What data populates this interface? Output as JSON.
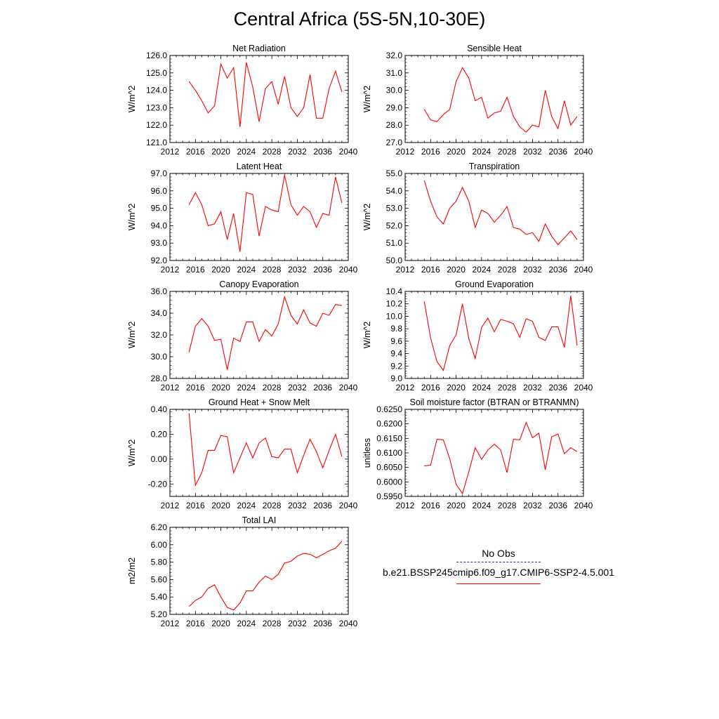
{
  "figure": {
    "title": "Central Africa (5S-5N,10-30E)"
  },
  "legend": {
    "entries": [
      {
        "label": "No Obs",
        "color": "#2b2b8a",
        "style": "dashed"
      },
      {
        "label": "b.e21.BSSP245cmip6.f09_g17.CMIP6-SSP2-4.5.001",
        "color": "#ff0000",
        "style": "solid"
      }
    ]
  },
  "chart_data": [
    {
      "type": "line",
      "title": "Net Radiation",
      "xlabel": "",
      "ylabel": "W/m^2",
      "xlim": [
        2012,
        2040
      ],
      "xticks": [
        "2012",
        "2016",
        "2020",
        "2024",
        "2028",
        "2032",
        "2036",
        "2040"
      ],
      "ylim": [
        121.0,
        126.0
      ],
      "yticks": [
        "121.0",
        "122.0",
        "123.0",
        "124.0",
        "125.0",
        "126.0"
      ],
      "x": [
        2015,
        2016,
        2017,
        2018,
        2019,
        2020,
        2021,
        2022,
        2023,
        2024,
        2025,
        2026,
        2027,
        2028,
        2029,
        2030,
        2031,
        2032,
        2033,
        2034,
        2035,
        2036,
        2037,
        2038,
        2039
      ],
      "series": [
        {
          "color": "#ff0000",
          "values": [
            124.5,
            124.0,
            123.4,
            122.7,
            123.1,
            125.5,
            124.7,
            125.3,
            121.9,
            125.6,
            124.2,
            122.2,
            124.1,
            124.5,
            123.2,
            124.8,
            123.0,
            122.5,
            123.0,
            124.9,
            122.4,
            122.4,
            124.1,
            125.1,
            123.9
          ]
        }
      ]
    },
    {
      "type": "line",
      "title": "Sensible Heat",
      "xlabel": "",
      "ylabel": "W/m^2",
      "xlim": [
        2012,
        2040
      ],
      "xticks": [
        "2012",
        "2016",
        "2020",
        "2024",
        "2028",
        "2032",
        "2036",
        "2040"
      ],
      "ylim": [
        27.0,
        32.0
      ],
      "yticks": [
        "27.0",
        "28.0",
        "29.0",
        "30.0",
        "31.0",
        "32.0"
      ],
      "x": [
        2015,
        2016,
        2017,
        2018,
        2019,
        2020,
        2021,
        2022,
        2023,
        2024,
        2025,
        2026,
        2027,
        2028,
        2029,
        2030,
        2031,
        2032,
        2033,
        2034,
        2035,
        2036,
        2037,
        2038,
        2039
      ],
      "series": [
        {
          "color": "#ff0000",
          "values": [
            28.9,
            28.3,
            28.2,
            28.6,
            28.9,
            30.5,
            31.3,
            30.7,
            29.4,
            29.6,
            28.4,
            28.7,
            28.8,
            29.6,
            28.5,
            27.9,
            27.6,
            28.0,
            27.9,
            30.0,
            28.5,
            27.8,
            29.4,
            28.0,
            28.5
          ]
        }
      ]
    },
    {
      "type": "line",
      "title": "Latent Heat",
      "xlabel": "",
      "ylabel": "W/m^2",
      "xlim": [
        2012,
        2040
      ],
      "xticks": [
        "2012",
        "2016",
        "2020",
        "2024",
        "2028",
        "2032",
        "2036",
        "2040"
      ],
      "ylim": [
        92.0,
        97.0
      ],
      "yticks": [
        "92.0",
        "93.0",
        "94.0",
        "95.0",
        "96.0",
        "97.0"
      ],
      "x": [
        2015,
        2016,
        2017,
        2018,
        2019,
        2020,
        2021,
        2022,
        2023,
        2024,
        2025,
        2026,
        2027,
        2028,
        2029,
        2030,
        2031,
        2032,
        2033,
        2034,
        2035,
        2036,
        2037,
        2038,
        2039
      ],
      "series": [
        {
          "color": "#ff0000",
          "values": [
            95.2,
            95.9,
            95.2,
            94.0,
            94.1,
            94.8,
            93.2,
            94.7,
            92.5,
            95.9,
            95.8,
            93.4,
            95.1,
            94.9,
            94.8,
            96.9,
            95.2,
            94.6,
            95.1,
            94.8,
            93.9,
            94.7,
            94.6,
            96.8,
            95.3
          ]
        }
      ]
    },
    {
      "type": "line",
      "title": "Transpiration",
      "xlabel": "",
      "ylabel": "W/m^2",
      "xlim": [
        2012,
        2040
      ],
      "xticks": [
        "2012",
        "2016",
        "2020",
        "2024",
        "2028",
        "2032",
        "2036",
        "2040"
      ],
      "ylim": [
        50.0,
        55.0
      ],
      "yticks": [
        "50.0",
        "51.0",
        "52.0",
        "53.0",
        "54.0",
        "55.0"
      ],
      "x": [
        2015,
        2016,
        2017,
        2018,
        2019,
        2020,
        2021,
        2022,
        2023,
        2024,
        2025,
        2026,
        2027,
        2028,
        2029,
        2030,
        2031,
        2032,
        2033,
        2034,
        2035,
        2036,
        2037,
        2038,
        2039
      ],
      "series": [
        {
          "color": "#ff0000",
          "values": [
            54.6,
            53.4,
            52.5,
            52.1,
            53.0,
            53.4,
            54.2,
            53.4,
            51.9,
            52.9,
            52.7,
            52.2,
            52.6,
            53.1,
            51.9,
            51.8,
            51.5,
            51.6,
            51.1,
            52.1,
            51.4,
            50.9,
            51.3,
            51.7,
            51.2
          ]
        }
      ]
    },
    {
      "type": "line",
      "title": "Canopy Evaporation",
      "xlabel": "",
      "ylabel": "W/m^2",
      "xlim": [
        2012,
        2040
      ],
      "xticks": [
        "2012",
        "2016",
        "2020",
        "2024",
        "2028",
        "2032",
        "2036",
        "2040"
      ],
      "ylim": [
        28.0,
        36.0
      ],
      "yticks": [
        "28.0",
        "30.0",
        "32.0",
        "34.0",
        "36.0"
      ],
      "x": [
        2015,
        2016,
        2017,
        2018,
        2019,
        2020,
        2021,
        2022,
        2023,
        2024,
        2025,
        2026,
        2027,
        2028,
        2029,
        2030,
        2031,
        2032,
        2033,
        2034,
        2035,
        2036,
        2037,
        2038,
        2039
      ],
      "series": [
        {
          "color": "#ff0000",
          "values": [
            30.4,
            32.8,
            33.5,
            32.8,
            31.5,
            31.6,
            28.8,
            31.7,
            31.4,
            33.2,
            33.2,
            31.4,
            32.5,
            31.9,
            33.0,
            35.5,
            33.8,
            33.0,
            34.3,
            33.1,
            32.8,
            34.0,
            33.8,
            34.8,
            34.7
          ]
        }
      ]
    },
    {
      "type": "line",
      "title": "Ground Evaporation",
      "xlabel": "",
      "ylabel": "W/m^2",
      "xlim": [
        2012,
        2040
      ],
      "xticks": [
        "2012",
        "2016",
        "2020",
        "2024",
        "2028",
        "2032",
        "2036",
        "2040"
      ],
      "ylim": [
        9.0,
        10.4
      ],
      "yticks": [
        "9.0",
        "9.2",
        "9.4",
        "9.6",
        "9.8",
        "10.0",
        "10.2",
        "10.4"
      ],
      "x": [
        2015,
        2016,
        2017,
        2018,
        2019,
        2020,
        2021,
        2022,
        2023,
        2024,
        2025,
        2026,
        2027,
        2028,
        2029,
        2030,
        2031,
        2032,
        2033,
        2034,
        2035,
        2036,
        2037,
        2038,
        2039
      ],
      "series": [
        {
          "color": "#ff0000",
          "values": [
            10.24,
            9.65,
            9.27,
            9.13,
            9.53,
            9.7,
            10.2,
            9.64,
            9.32,
            9.82,
            9.97,
            9.75,
            9.95,
            9.92,
            9.88,
            9.66,
            9.96,
            9.92,
            9.66,
            9.61,
            9.83,
            9.83,
            9.5,
            10.33,
            9.53
          ]
        }
      ]
    },
    {
      "type": "line",
      "title": "Ground Heat + Snow Melt",
      "xlabel": "",
      "ylabel": "W/m^2",
      "xlim": [
        2012,
        2040
      ],
      "xticks": [
        "2012",
        "2016",
        "2020",
        "2024",
        "2028",
        "2032",
        "2036",
        "2040"
      ],
      "ylim": [
        -0.3,
        0.4
      ],
      "yticks": [
        "-0.20",
        "0.00",
        "0.20",
        "0.40"
      ],
      "ytickvals": [
        -0.2,
        0.0,
        0.2,
        0.4
      ],
      "x": [
        2015,
        2016,
        2017,
        2018,
        2019,
        2020,
        2021,
        2022,
        2023,
        2024,
        2025,
        2026,
        2027,
        2028,
        2029,
        2030,
        2031,
        2032,
        2033,
        2034,
        2035,
        2036,
        2037,
        2038,
        2039
      ],
      "series": [
        {
          "color": "#ff0000",
          "values": [
            0.37,
            -0.21,
            -0.11,
            0.07,
            0.07,
            0.19,
            0.18,
            -0.11,
            0.01,
            0.13,
            0.01,
            0.13,
            0.17,
            0.02,
            0.01,
            0.08,
            0.08,
            -0.11,
            0.03,
            0.16,
            0.06,
            -0.07,
            0.07,
            0.2,
            0.02
          ]
        }
      ]
    },
    {
      "type": "line",
      "title": "Soil moisture factor (BTRAN or BTRANMN)",
      "xlabel": "",
      "ylabel": "unitless",
      "xlim": [
        2012,
        2040
      ],
      "xticks": [
        "2012",
        "2016",
        "2020",
        "2024",
        "2028",
        "2032",
        "2036",
        "2040"
      ],
      "ylim": [
        0.595,
        0.625
      ],
      "yticks": [
        "0.5950",
        "0.6000",
        "0.6050",
        "0.6100",
        "0.6150",
        "0.6200",
        "0.6250"
      ],
      "x": [
        2015,
        2016,
        2017,
        2018,
        2019,
        2020,
        2021,
        2022,
        2023,
        2024,
        2025,
        2026,
        2027,
        2028,
        2029,
        2030,
        2031,
        2032,
        2033,
        2034,
        2035,
        2036,
        2037,
        2038,
        2039
      ],
      "series": [
        {
          "color": "#ff0000",
          "values": [
            0.6055,
            0.6058,
            0.6147,
            0.6145,
            0.608,
            0.5992,
            0.596,
            0.6035,
            0.6118,
            0.6078,
            0.611,
            0.613,
            0.611,
            0.6032,
            0.6147,
            0.6145,
            0.6205,
            0.6152,
            0.6168,
            0.6042,
            0.6155,
            0.6165,
            0.6097,
            0.6118,
            0.6104
          ]
        }
      ]
    },
    {
      "type": "line",
      "title": "Total LAI",
      "xlabel": "",
      "ylabel": "m2/m2",
      "xlim": [
        2012,
        2040
      ],
      "xticks": [
        "2012",
        "2016",
        "2020",
        "2024",
        "2028",
        "2032",
        "2036",
        "2040"
      ],
      "ylim": [
        5.2,
        6.2
      ],
      "yticks": [
        "5.20",
        "5.40",
        "5.60",
        "5.80",
        "6.00",
        "6.20"
      ],
      "x": [
        2015,
        2016,
        2017,
        2018,
        2019,
        2020,
        2021,
        2022,
        2023,
        2024,
        2025,
        2026,
        2027,
        2028,
        2029,
        2030,
        2031,
        2032,
        2033,
        2034,
        2035,
        2036,
        2037,
        2038,
        2039
      ],
      "series": [
        {
          "color": "#ff0000",
          "values": [
            5.29,
            5.36,
            5.4,
            5.5,
            5.54,
            5.4,
            5.28,
            5.25,
            5.33,
            5.47,
            5.47,
            5.57,
            5.64,
            5.6,
            5.66,
            5.79,
            5.81,
            5.87,
            5.9,
            5.89,
            5.85,
            5.89,
            5.93,
            5.96,
            6.04
          ]
        }
      ]
    }
  ]
}
